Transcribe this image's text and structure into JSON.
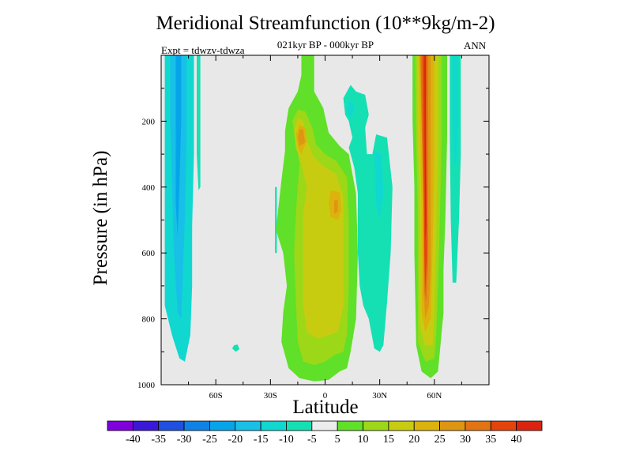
{
  "chart_data": {
    "type": "heatmap",
    "title": "Meridional Streamfunction (10**9kg/m-2)",
    "subtitle": "021kyr BP - 000kyr BP",
    "experiment": "Expt = tdwzv-tdwza",
    "season": "ANN",
    "xlabel": "Latitude",
    "ylabel": "Pressure (in hPa)",
    "xlim": [
      -90,
      90
    ],
    "ylim": [
      0,
      1000
    ],
    "x_ticks": [
      {
        "value": -60,
        "label": "60S"
      },
      {
        "value": -30,
        "label": "30S"
      },
      {
        "value": 0,
        "label": "0"
      },
      {
        "value": 30,
        "label": "30N"
      },
      {
        "value": 60,
        "label": "60N"
      }
    ],
    "y_ticks": [
      {
        "value": 200,
        "label": "200"
      },
      {
        "value": 400,
        "label": "400"
      },
      {
        "value": 600,
        "label": "600"
      },
      {
        "value": 800,
        "label": "800"
      },
      {
        "value": 1000,
        "label": "1000"
      }
    ],
    "colorbar_levels": [
      "-40",
      "-35",
      "-30",
      "-25",
      "-20",
      "-15",
      "-10",
      "-5",
      "5",
      "10",
      "15",
      "20",
      "25",
      "30",
      "35",
      "40"
    ],
    "colorbar_colors": [
      "#7f00dd",
      "#3b18d8",
      "#2050e0",
      "#1082e6",
      "#06a5ea",
      "#18c0e8",
      "#10d8d0",
      "#14e0b4",
      "#ececec",
      "#60e028",
      "#9cd818",
      "#c8cc10",
      "#dcb20c",
      "#de9612",
      "#e27414",
      "#e4440c",
      "#da2410"
    ],
    "features": [
      {
        "name": "Southern high-latitude negative cell",
        "lat_range": [
          -88,
          -72
        ],
        "p_range": [
          0,
          930
        ],
        "peak": -20
      },
      {
        "name": "Southern outer weak negative band",
        "lat_range": [
          -72,
          -69
        ],
        "p_range": [
          0,
          400
        ],
        "peak": -5
      },
      {
        "name": "Tropical positive cell (SH/EQ)",
        "lat_range": [
          -22,
          15
        ],
        "p_range": [
          0,
          980
        ],
        "peak": 25
      },
      {
        "name": "Upper tropical positive core",
        "lat_range": [
          -15,
          -10
        ],
        "p_range": [
          200,
          290
        ],
        "peak": 25
      },
      {
        "name": "Mid-level positive core",
        "lat_range": [
          4,
          9
        ],
        "p_range": [
          430,
          500
        ],
        "peak": 25
      },
      {
        "name": "Subtropical NH negative cell",
        "lat_range": [
          10,
          38
        ],
        "p_range": [
          80,
          900
        ],
        "peak": -10
      },
      {
        "name": "NH mid-latitude positive cell",
        "lat_range": [
          48,
          66
        ],
        "p_range": [
          0,
          980
        ],
        "peak": 40
      },
      {
        "name": "NH high-latitude negative band",
        "lat_range": [
          69,
          74
        ],
        "p_range": [
          0,
          690
        ],
        "peak": -10
      }
    ]
  }
}
